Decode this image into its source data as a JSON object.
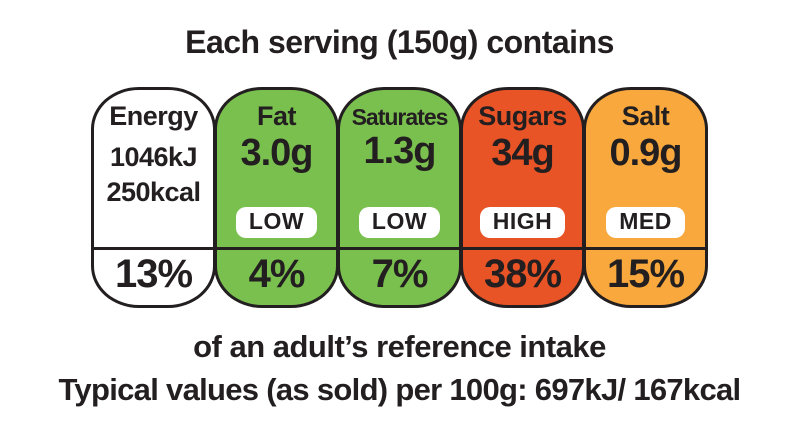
{
  "title": "Each serving (150g) contains",
  "panel": {
    "outline_color": "#231f20",
    "badge_bg": "#ffffff",
    "nutrients": [
      {
        "name": "Energy",
        "value_kj": "1046kJ",
        "value_kcal": "250kcal",
        "level": "",
        "percent": "13%",
        "fill": "#ffffff"
      },
      {
        "name": "Fat",
        "value": "3.0g",
        "level": "LOW",
        "percent": "4%",
        "fill": "#7ac04f"
      },
      {
        "name": "Saturates",
        "value": "1.3g",
        "level": "LOW",
        "percent": "7%",
        "fill": "#7ac04f"
      },
      {
        "name": "Sugars",
        "value": "34g",
        "level": "HIGH",
        "percent": "38%",
        "fill": "#e85426"
      },
      {
        "name": "Salt",
        "value": "0.9g",
        "level": "MED",
        "percent": "15%",
        "fill": "#f8a83c"
      }
    ]
  },
  "footer": {
    "line1": "of an adult’s reference intake",
    "line2": "Typical values (as sold) per 100g: 697kJ/ 167kcal"
  }
}
